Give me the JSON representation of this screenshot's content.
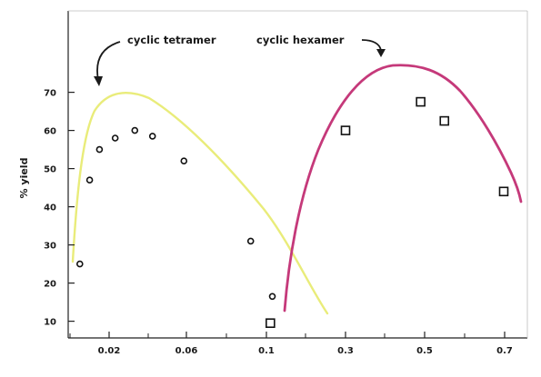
{
  "chart_data": {
    "type": "scatter",
    "title": "",
    "xlabel": "",
    "ylabel": "% yield",
    "ylim": [
      0,
      80
    ],
    "y_ticks": [
      10,
      20,
      30,
      40,
      50,
      60,
      70
    ],
    "x_tick_labels": [
      "0.02",
      "0.06",
      "0.1",
      "0.3",
      "0.5",
      "0.7"
    ],
    "grid": false,
    "legend": "none",
    "annotations": [
      "cyclic tetramer",
      "cyclic hexamer"
    ],
    "series": [
      {
        "name": "cyclic tetramer",
        "marker": "circle",
        "curve_color": "#e9ec7a",
        "x": [
          0.005,
          0.01,
          0.015,
          0.023,
          0.033,
          0.042,
          0.058,
          0.092,
          0.115
        ],
        "y": [
          25,
          47,
          55,
          58,
          60,
          58.5,
          52,
          31,
          16.5
        ]
      },
      {
        "name": "cyclic hexamer",
        "marker": "square",
        "curve_color": "#c5397a",
        "x": [
          0.11,
          0.3,
          0.49,
          0.55,
          0.7
        ],
        "y": [
          9.5,
          60,
          67.5,
          62.5,
          44
        ]
      }
    ]
  }
}
